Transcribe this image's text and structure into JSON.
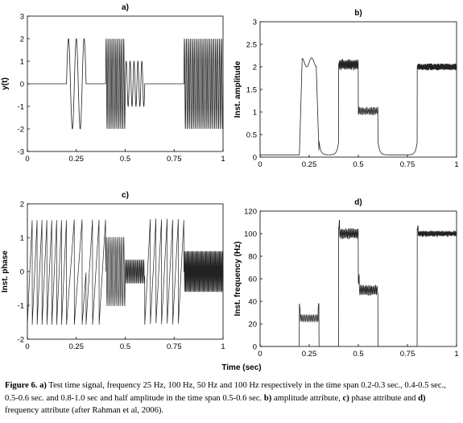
{
  "chart_data": [
    {
      "type": "line",
      "panel": "a)",
      "title": "a)",
      "ylabel": "y(t)",
      "xlabel": "",
      "xlim": [
        0,
        1
      ],
      "ylim": [
        -3,
        3
      ],
      "xticks": [
        "0",
        "0.25",
        "0.5",
        "0.75",
        "1"
      ],
      "yticks": [
        "-3",
        "-2",
        "-1",
        "0",
        "1",
        "2",
        "3"
      ],
      "series": [
        {
          "segments": [
            {
              "x_start": 0.0,
              "x_end": 0.2,
              "freq_hz": 0,
              "amplitude": 0
            },
            {
              "x_start": 0.2,
              "x_end": 0.3,
              "freq_hz": 25,
              "amplitude": 2
            },
            {
              "x_start": 0.3,
              "x_end": 0.4,
              "freq_hz": 0,
              "amplitude": 0
            },
            {
              "x_start": 0.4,
              "x_end": 0.5,
              "freq_hz": 100,
              "amplitude": 2
            },
            {
              "x_start": 0.5,
              "x_end": 0.6,
              "freq_hz": 50,
              "amplitude": 1
            },
            {
              "x_start": 0.6,
              "x_end": 0.8,
              "freq_hz": 0,
              "amplitude": 0
            },
            {
              "x_start": 0.8,
              "x_end": 1.0,
              "freq_hz": 100,
              "amplitude": 2
            }
          ]
        }
      ]
    },
    {
      "type": "line",
      "panel": "b)",
      "title": "b)",
      "ylabel": "Inst. amplitude",
      "xlabel": "",
      "xlim": [
        0,
        1
      ],
      "ylim": [
        0,
        3
      ],
      "xticks": [
        "0",
        "0.25",
        "0.5",
        "0.75",
        "1"
      ],
      "yticks": [
        "0",
        "0.5",
        "1",
        "1.5",
        "2",
        "2.5",
        "3"
      ],
      "series": [
        {
          "segments": [
            {
              "x_start": 0.0,
              "x_end": 0.2,
              "value": 0.05
            },
            {
              "x_start": 0.2,
              "x_end": 0.3,
              "value": 2.1
            },
            {
              "x_start": 0.3,
              "x_end": 0.4,
              "value": 0.05
            },
            {
              "x_start": 0.4,
              "x_end": 0.5,
              "value": 2.05
            },
            {
              "x_start": 0.5,
              "x_end": 0.6,
              "value": 1.0
            },
            {
              "x_start": 0.6,
              "x_end": 0.8,
              "value": 0.05
            },
            {
              "x_start": 0.8,
              "x_end": 1.0,
              "value": 2.0
            }
          ]
        }
      ]
    },
    {
      "type": "line",
      "panel": "c)",
      "title": "c)",
      "ylabel": "Inst. phase",
      "xlabel": "",
      "xlim": [
        0,
        1
      ],
      "ylim": [
        -2,
        2
      ],
      "xticks": [
        "0",
        "0.25",
        "0.5",
        "0.75",
        "1"
      ],
      "yticks": [
        "-2",
        "-1",
        "0",
        "1",
        "2"
      ],
      "series": [
        {
          "wrapped_phase_range": [
            -1.57,
            1.57
          ]
        }
      ]
    },
    {
      "type": "line",
      "panel": "d)",
      "title": "d)",
      "ylabel": "Inst. frequency (Hz)",
      "xlabel": "Time (sec)",
      "xlim": [
        0,
        1
      ],
      "ylim": [
        0,
        120
      ],
      "xticks": [
        "0",
        "0.25",
        "0.5",
        "0.75",
        "1"
      ],
      "yticks": [
        "0",
        "20",
        "40",
        "60",
        "80",
        "100",
        "120"
      ],
      "series": [
        {
          "segments": [
            {
              "x_start": 0.0,
              "x_end": 0.2,
              "value": 0
            },
            {
              "x_start": 0.2,
              "x_end": 0.3,
              "value": 25
            },
            {
              "x_start": 0.3,
              "x_end": 0.4,
              "value": 0
            },
            {
              "x_start": 0.4,
              "x_end": 0.5,
              "value": 100
            },
            {
              "x_start": 0.5,
              "x_end": 0.6,
              "value": 50
            },
            {
              "x_start": 0.6,
              "x_end": 0.8,
              "value": 0
            },
            {
              "x_start": 0.8,
              "x_end": 1.0,
              "value": 100
            }
          ]
        }
      ]
    }
  ],
  "shared_xlabel": "Time (sec)",
  "caption": {
    "fig_label": "Figure 6.",
    "part_a_label": "a)",
    "part_a_text": " Test time signal, frequency 25 Hz, 100 Hz, 50 Hz and 100 Hz respectively in the time span 0.2-0.3 sec., 0.4-0.5  sec., 0.5-0.6 sec. and 0.8-1.0 sec and half amplitude in the time span 0.5-0.6 sec. ",
    "part_b_label": "b)",
    "part_b_text": " amplitude attribute, ",
    "part_c_label": "c)",
    "part_c_text": " phase attribute and  ",
    "part_d_label": "d)",
    "part_d_text": " frequency attribute (after Rahman et al, 2006)."
  }
}
